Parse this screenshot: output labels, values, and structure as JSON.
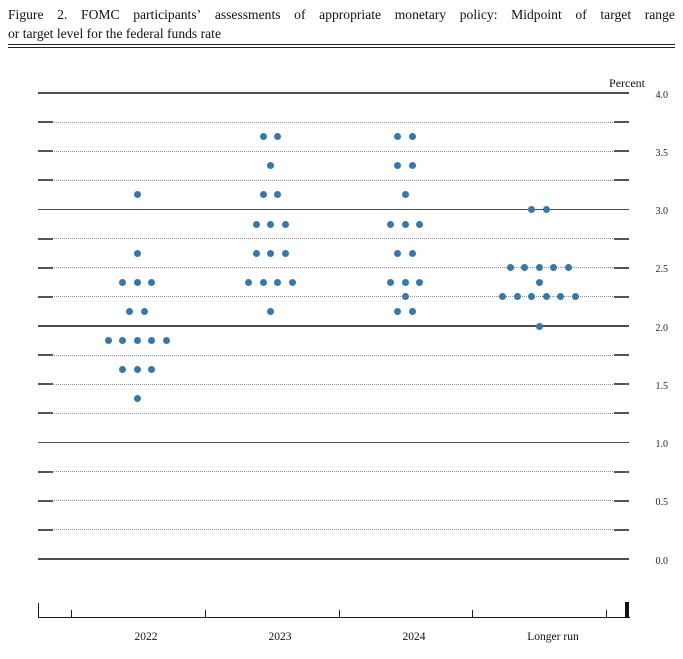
{
  "title": {
    "line1": "Figure 2.  FOMC participants’ assessments of appropriate monetary policy:  Midpoint of target range",
    "line2": "or target level for the federal funds rate"
  },
  "chart_data": {
    "type": "scatter",
    "title": "FOMC participants’ assessments of appropriate monetary policy: Midpoint of target range or target level for the federal funds rate",
    "ylabel": "Percent",
    "ylim": [
      0.0,
      4.0
    ],
    "y_gridline_interval": 0.25,
    "y_tick_labels": [
      "4.0",
      "3.5",
      "3.0",
      "2.5",
      "2.0",
      "1.5",
      "1.0",
      "0.5",
      "0.0"
    ],
    "grid": "horizontal dotted lines every 0.25 pct with solid end caps, solid lines at whole percents",
    "legend_position": "none",
    "categories": [
      "2022",
      "2023",
      "2024",
      "Longer run"
    ],
    "dot_color": "#3878a8",
    "series": [
      {
        "name": "2022",
        "dots": [
          {
            "rate": 3.125,
            "count": 1
          },
          {
            "rate": 2.625,
            "count": 1
          },
          {
            "rate": 2.375,
            "count": 3
          },
          {
            "rate": 2.125,
            "count": 2
          },
          {
            "rate": 1.875,
            "count": 5
          },
          {
            "rate": 1.625,
            "count": 3
          },
          {
            "rate": 1.375,
            "count": 1
          }
        ]
      },
      {
        "name": "2023",
        "dots": [
          {
            "rate": 3.625,
            "count": 2
          },
          {
            "rate": 3.375,
            "count": 1
          },
          {
            "rate": 3.125,
            "count": 2
          },
          {
            "rate": 2.875,
            "count": 3
          },
          {
            "rate": 2.625,
            "count": 3
          },
          {
            "rate": 2.375,
            "count": 4
          },
          {
            "rate": 2.125,
            "count": 1
          }
        ]
      },
      {
        "name": "2024",
        "dots": [
          {
            "rate": 3.625,
            "count": 2
          },
          {
            "rate": 3.375,
            "count": 2
          },
          {
            "rate": 3.125,
            "count": 1
          },
          {
            "rate": 2.875,
            "count": 3
          },
          {
            "rate": 2.625,
            "count": 2
          },
          {
            "rate": 2.375,
            "count": 3
          },
          {
            "rate": 2.25,
            "count": 1
          },
          {
            "rate": 2.125,
            "count": 2
          }
        ]
      },
      {
        "name": "Longer run",
        "dots": [
          {
            "rate": 3.0,
            "count": 2
          },
          {
            "rate": 2.5,
            "count": 5
          },
          {
            "rate": 2.375,
            "count": 1
          },
          {
            "rate": 2.25,
            "count": 6
          },
          {
            "rate": 2.0,
            "count": 1
          }
        ]
      }
    ]
  }
}
